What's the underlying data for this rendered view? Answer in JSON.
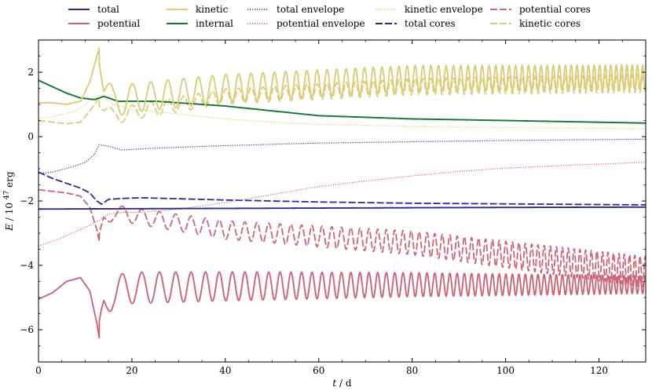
{
  "chart_data": {
    "type": "line",
    "title": "",
    "xlabel": "t / d",
    "ylabel": "E / 10^47 erg",
    "ylabel_parts": {
      "var": "E",
      "unit_base": "/ 10",
      "exponent": "47",
      "unit": "erg"
    },
    "xlabel_parts": {
      "var": "t",
      "unit": "/ d"
    },
    "xlim": [
      0,
      130
    ],
    "ylim": [
      -7,
      3
    ],
    "xticks": [
      0,
      20,
      40,
      60,
      80,
      100,
      120
    ],
    "yticks": [
      -6,
      -4,
      -2,
      0,
      2
    ],
    "ytick_labels": [
      "−6",
      "−4",
      "−2",
      "0",
      "2"
    ],
    "grid": false,
    "legend_position": "top",
    "colors": {
      "blue": "#2c2c8f",
      "red": "#cc6677",
      "gold": "#ddcc77",
      "green": "#117733"
    },
    "series": [
      {
        "name": "total",
        "color": "#2c2c8f",
        "style": "solid",
        "x": [
          0,
          20,
          60,
          100,
          130
        ],
        "y": [
          -2.25,
          -2.24,
          -2.22,
          -2.2,
          -2.19
        ]
      },
      {
        "name": "potential",
        "color": "#cc6677",
        "style": "solid",
        "osc": {
          "start": 13,
          "amp_start": 1.0,
          "amp_end": 0.55,
          "period_start": 6,
          "period_end": 1.1
        },
        "x": [
          0,
          3,
          6,
          9,
          11,
          12.5,
          13,
          14,
          16,
          20,
          40,
          80,
          130
        ],
        "y": [
          -5.05,
          -4.85,
          -4.5,
          -4.38,
          -4.8,
          -5.8,
          -6.25,
          -5.3,
          -4.8,
          -4.7,
          -4.65,
          -4.6,
          -4.6
        ]
      },
      {
        "name": "kinetic",
        "color": "#ddcc77",
        "style": "solid",
        "osc": {
          "start": 13,
          "amp_start": 0.9,
          "amp_end": 0.75,
          "period_start": 6,
          "period_end": 1.1
        },
        "x": [
          0,
          3,
          6,
          9,
          11,
          12.5,
          13,
          14,
          16,
          20,
          40,
          80,
          130
        ],
        "y": [
          1.05,
          1.05,
          1.0,
          1.1,
          1.7,
          2.5,
          2.75,
          1.6,
          1.05,
          1.2,
          1.5,
          1.8,
          1.85
        ]
      },
      {
        "name": "internal",
        "color": "#117733",
        "style": "solid",
        "x": [
          0,
          3,
          6,
          9,
          12,
          14,
          17,
          20,
          25,
          30,
          40,
          50,
          60,
          80,
          100,
          130
        ],
        "y": [
          1.75,
          1.55,
          1.35,
          1.2,
          1.15,
          1.25,
          1.1,
          1.1,
          1.1,
          1.05,
          0.95,
          0.8,
          0.65,
          0.55,
          0.5,
          0.42
        ]
      },
      {
        "name": "total envelope",
        "color": "#2c2c8f",
        "style": "dotted",
        "x": [
          0,
          3,
          7,
          10,
          12,
          13,
          15,
          18,
          22,
          30,
          40,
          60,
          80,
          100,
          130
        ],
        "y": [
          -1.15,
          -1.1,
          -0.95,
          -0.8,
          -0.55,
          -0.25,
          -0.3,
          -0.42,
          -0.38,
          -0.33,
          -0.28,
          -0.2,
          -0.16,
          -0.12,
          -0.08
        ]
      },
      {
        "name": "potential envelope",
        "color": "#cc6677",
        "style": "dotted",
        "x": [
          0,
          4,
          8,
          11,
          13,
          15,
          18,
          22,
          30,
          40,
          50,
          60,
          70,
          80,
          90,
          100,
          115,
          130
        ],
        "y": [
          -3.4,
          -3.2,
          -2.95,
          -2.75,
          -2.6,
          -2.4,
          -2.35,
          -2.35,
          -2.25,
          -2.05,
          -1.8,
          -1.55,
          -1.38,
          -1.22,
          -1.08,
          -0.98,
          -0.88,
          -0.8
        ]
      },
      {
        "name": "kinetic envelope",
        "color": "#ddcc77",
        "style": "dotted",
        "x": [
          0,
          4,
          8,
          11,
          13,
          16,
          20,
          30,
          40,
          50,
          60,
          80,
          100,
          130
        ],
        "y": [
          0.55,
          0.65,
          0.8,
          1.1,
          1.3,
          1.0,
          0.85,
          0.7,
          0.55,
          0.45,
          0.38,
          0.32,
          0.28,
          0.25
        ]
      },
      {
        "name": "total cores",
        "color": "#2c2c8f",
        "style": "dashed",
        "x": [
          0,
          3,
          6,
          9,
          11,
          12.5,
          13.5,
          15,
          18,
          22,
          30,
          40,
          60,
          80,
          100,
          130
        ],
        "y": [
          -1.1,
          -1.3,
          -1.45,
          -1.6,
          -1.75,
          -2.0,
          -2.1,
          -1.95,
          -1.92,
          -1.9,
          -1.93,
          -1.97,
          -2.03,
          -2.07,
          -2.09,
          -2.12
        ]
      },
      {
        "name": "potential cores",
        "color": "#cc6677",
        "style": "dashed",
        "osc": {
          "start": 13,
          "amp_start": 0.45,
          "amp_end": 0.95,
          "period_start": 6,
          "period_end": 1.1
        },
        "x": [
          0,
          3,
          6,
          9,
          11,
          12.5,
          13,
          14,
          16,
          20,
          40,
          80,
          130
        ],
        "y": [
          -1.65,
          -1.7,
          -1.75,
          -1.85,
          -2.2,
          -2.9,
          -3.25,
          -2.6,
          -2.35,
          -2.45,
          -2.9,
          -3.3,
          -4.2
        ]
      },
      {
        "name": "kinetic cores",
        "color": "#ddcc77",
        "style": "dashed",
        "osc": {
          "start": 13,
          "amp_start": 0.45,
          "amp_end": 0.55,
          "period_start": 6,
          "period_end": 1.1
        },
        "x": [
          0,
          3,
          6,
          9,
          11,
          12.5,
          13,
          14,
          16,
          20,
          40,
          80,
          130
        ],
        "y": [
          0.5,
          0.45,
          0.4,
          0.45,
          0.8,
          1.1,
          1.2,
          0.9,
          0.6,
          0.75,
          1.25,
          1.55,
          1.65
        ]
      }
    ]
  }
}
